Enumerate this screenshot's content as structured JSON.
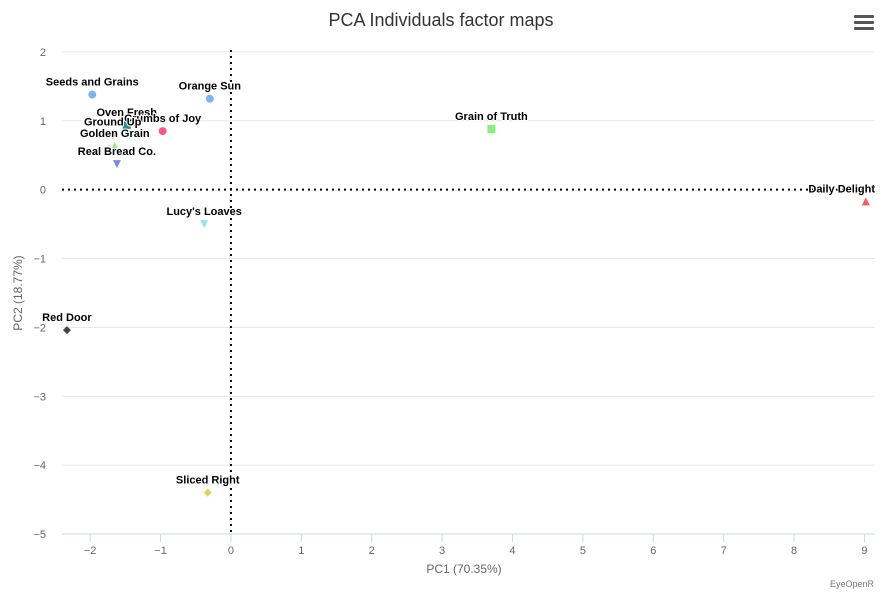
{
  "chart_data": {
    "type": "scatter",
    "title": "PCA Individuals factor maps",
    "xlabel": "PC1 (70.35%)",
    "ylabel": "PC2 (18.77%)",
    "xlim": [
      -2.4,
      9.15
    ],
    "ylim": [
      -5,
      2.1
    ],
    "xticks": [
      "−2",
      "−1",
      "0",
      "1",
      "2",
      "3",
      "4",
      "5",
      "6",
      "7",
      "8",
      "9"
    ],
    "xtick_values": [
      -2,
      -1,
      0,
      1,
      2,
      3,
      4,
      5,
      6,
      7,
      8,
      9
    ],
    "yticks": [
      "2",
      "1",
      "0",
      "−1",
      "−2",
      "−3",
      "−4",
      "−5"
    ],
    "ytick_values": [
      2,
      1,
      0,
      -1,
      -2,
      -3,
      -4,
      -5
    ],
    "grid": "horizontal",
    "reference_lines": "dotted x=0 and y=0",
    "points": [
      {
        "label": "Seeds and Grains",
        "x": -1.97,
        "y": 1.38,
        "marker": "circle",
        "color": "#7cb5ec"
      },
      {
        "label": "Orange Sun",
        "x": -0.3,
        "y": 1.32,
        "marker": "circle",
        "color": "#7cb5ec"
      },
      {
        "label": "Oven Fresh",
        "x": -1.48,
        "y": 0.94,
        "marker": "square",
        "color": "#2b908f"
      },
      {
        "label": "Crumbs of Joy",
        "x": -0.97,
        "y": 0.85,
        "marker": "circle",
        "color": "#f15c80"
      },
      {
        "label": "Ground Up",
        "x": -1.68,
        "y": 0.8,
        "marker": "diamond",
        "color": "#434348"
      },
      {
        "label": "Golden Grain",
        "x": -1.65,
        "y": 0.63,
        "marker": "triangle",
        "color": "#90ed7d"
      },
      {
        "label": "Real Bread Co.",
        "x": -1.62,
        "y": 0.37,
        "marker": "triangle-down",
        "color": "#8085e9"
      },
      {
        "label": "Grain of Truth",
        "x": 3.7,
        "y": 0.88,
        "marker": "square",
        "color": "#90ed7d"
      },
      {
        "label": "Daily Delight",
        "x": 9.02,
        "y": -0.17,
        "marker": "triangle",
        "color": "#f45b5b"
      },
      {
        "label": "Lucy's Loaves",
        "x": -0.38,
        "y": -0.5,
        "marker": "triangle-down",
        "color": "#91e8e1"
      },
      {
        "label": "Red Door",
        "x": -2.33,
        "y": -2.04,
        "marker": "diamond",
        "color": "#434348"
      },
      {
        "label": "Sliced Right",
        "x": -0.33,
        "y": -4.4,
        "marker": "diamond",
        "color": "#e4d354"
      }
    ]
  },
  "credit": "EyeOpenR",
  "menu_icon": "hamburger-menu-icon"
}
